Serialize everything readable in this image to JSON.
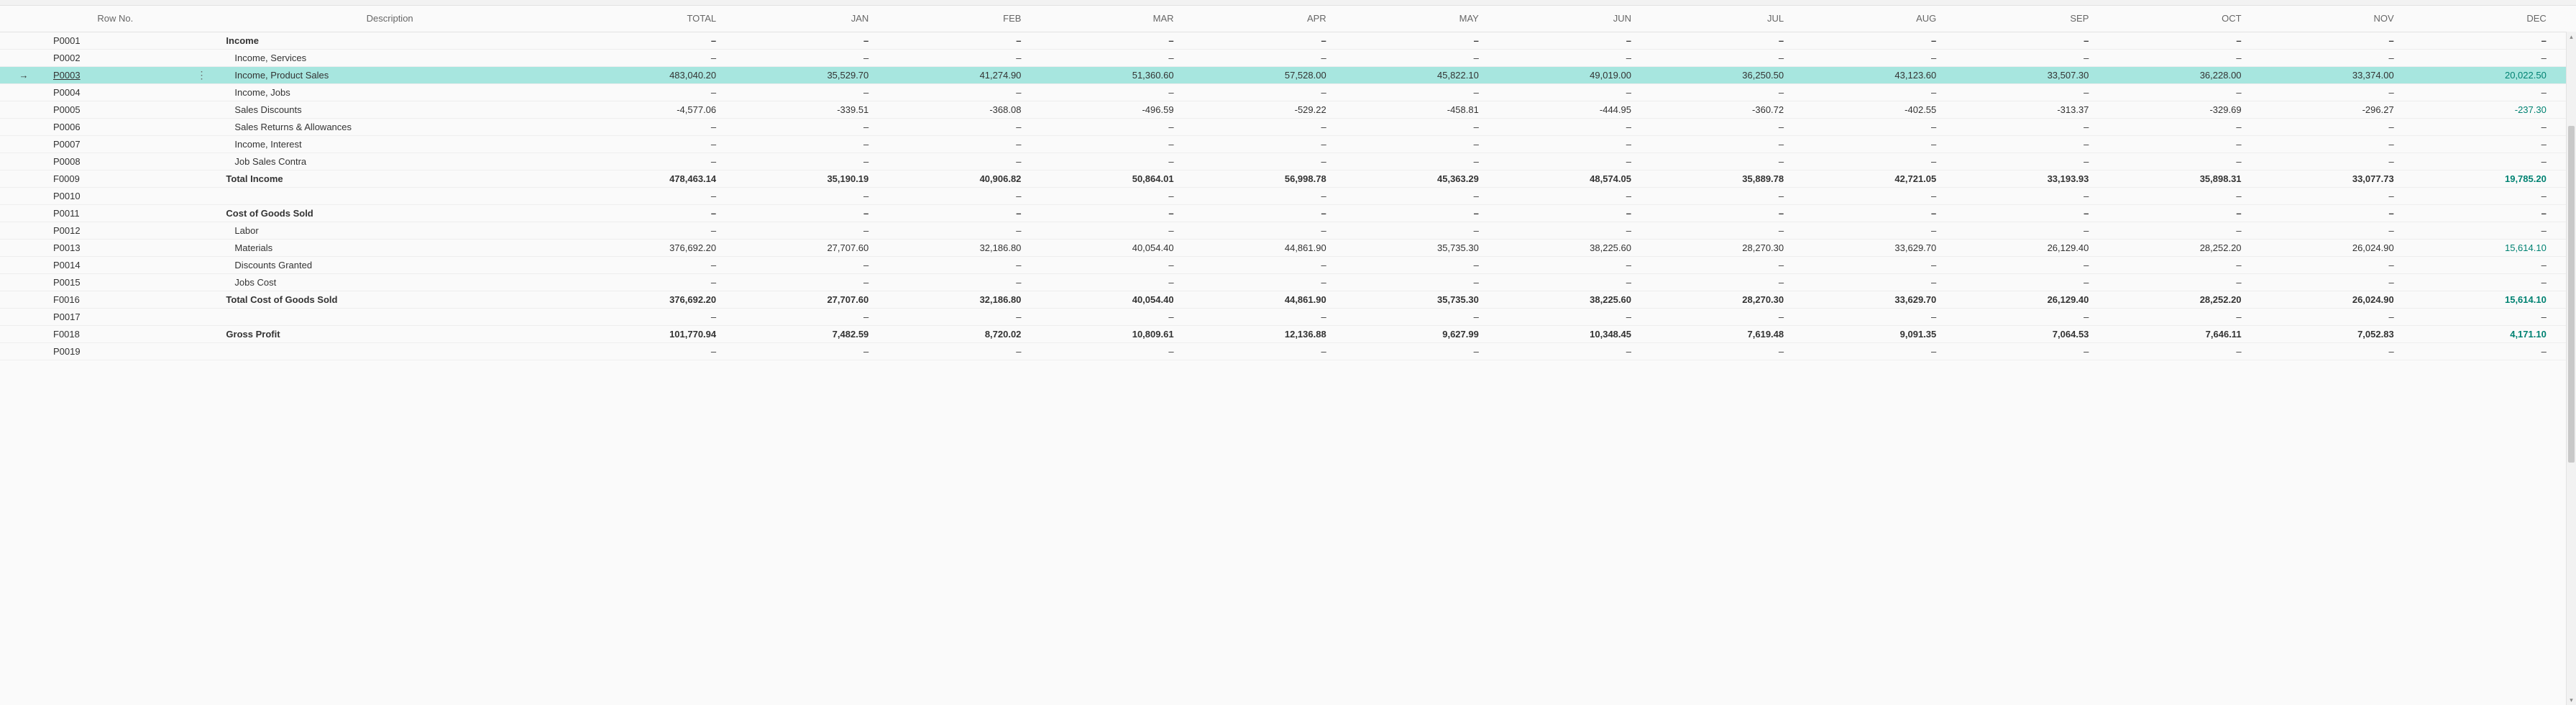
{
  "columns": {
    "rowno": "Row No.",
    "description": "Description",
    "total": "TOTAL",
    "months": [
      "JAN",
      "FEB",
      "MAR",
      "APR",
      "MAY",
      "JUN",
      "JUL",
      "AUG",
      "SEP",
      "OCT",
      "NOV",
      "DEC"
    ]
  },
  "dash": "–",
  "selected_row_id": "P0003",
  "rows": [
    {
      "id": "P0001",
      "desc": "Income",
      "bold": true,
      "sub": false,
      "values": {
        "total": null,
        "months": [
          null,
          null,
          null,
          null,
          null,
          null,
          null,
          null,
          null,
          null,
          null,
          null
        ]
      }
    },
    {
      "id": "P0002",
      "desc": "Income, Services",
      "bold": false,
      "sub": true,
      "values": {
        "total": null,
        "months": [
          null,
          null,
          null,
          null,
          null,
          null,
          null,
          null,
          null,
          null,
          null,
          null
        ]
      }
    },
    {
      "id": "P0003",
      "desc": "Income, Product Sales",
      "bold": false,
      "sub": true,
      "values": {
        "total": "483,040.20",
        "months": [
          "35,529.70",
          "41,274.90",
          "51,360.60",
          "57,528.00",
          "45,822.10",
          "49,019.00",
          "36,250.50",
          "43,123.60",
          "33,507.30",
          "36,228.00",
          "33,374.00",
          "20,022.50"
        ]
      }
    },
    {
      "id": "P0004",
      "desc": "Income, Jobs",
      "bold": false,
      "sub": true,
      "values": {
        "total": null,
        "months": [
          null,
          null,
          null,
          null,
          null,
          null,
          null,
          null,
          null,
          null,
          null,
          null
        ]
      }
    },
    {
      "id": "P0005",
      "desc": "Sales Discounts",
      "bold": false,
      "sub": true,
      "values": {
        "total": "-4,577.06",
        "months": [
          "-339.51",
          "-368.08",
          "-496.59",
          "-529.22",
          "-458.81",
          "-444.95",
          "-360.72",
          "-402.55",
          "-313.37",
          "-329.69",
          "-296.27",
          "-237.30"
        ]
      }
    },
    {
      "id": "P0006",
      "desc": "Sales Returns & Allowances",
      "bold": false,
      "sub": true,
      "values": {
        "total": null,
        "months": [
          null,
          null,
          null,
          null,
          null,
          null,
          null,
          null,
          null,
          null,
          null,
          null
        ]
      }
    },
    {
      "id": "P0007",
      "desc": "Income, Interest",
      "bold": false,
      "sub": true,
      "values": {
        "total": null,
        "months": [
          null,
          null,
          null,
          null,
          null,
          null,
          null,
          null,
          null,
          null,
          null,
          null
        ]
      }
    },
    {
      "id": "P0008",
      "desc": "Job Sales Contra",
      "bold": false,
      "sub": true,
      "values": {
        "total": null,
        "months": [
          null,
          null,
          null,
          null,
          null,
          null,
          null,
          null,
          null,
          null,
          null,
          null
        ]
      }
    },
    {
      "id": "F0009",
      "desc": "Total Income",
      "bold": true,
      "sub": false,
      "values": {
        "total": "478,463.14",
        "months": [
          "35,190.19",
          "40,906.82",
          "50,864.01",
          "56,998.78",
          "45,363.29",
          "48,574.05",
          "35,889.78",
          "42,721.05",
          "33,193.93",
          "35,898.31",
          "33,077.73",
          "19,785.20"
        ]
      }
    },
    {
      "id": "P0010",
      "desc": "",
      "bold": false,
      "sub": false,
      "values": {
        "total": null,
        "months": [
          null,
          null,
          null,
          null,
          null,
          null,
          null,
          null,
          null,
          null,
          null,
          null
        ]
      }
    },
    {
      "id": "P0011",
      "desc": "Cost of Goods Sold",
      "bold": true,
      "sub": false,
      "values": {
        "total": null,
        "months": [
          null,
          null,
          null,
          null,
          null,
          null,
          null,
          null,
          null,
          null,
          null,
          null
        ]
      }
    },
    {
      "id": "P0012",
      "desc": "Labor",
      "bold": false,
      "sub": true,
      "values": {
        "total": null,
        "months": [
          null,
          null,
          null,
          null,
          null,
          null,
          null,
          null,
          null,
          null,
          null,
          null
        ]
      }
    },
    {
      "id": "P0013",
      "desc": "Materials",
      "bold": false,
      "sub": true,
      "values": {
        "total": "376,692.20",
        "months": [
          "27,707.60",
          "32,186.80",
          "40,054.40",
          "44,861.90",
          "35,735.30",
          "38,225.60",
          "28,270.30",
          "33,629.70",
          "26,129.40",
          "28,252.20",
          "26,024.90",
          "15,614.10"
        ]
      }
    },
    {
      "id": "P0014",
      "desc": "Discounts Granted",
      "bold": false,
      "sub": true,
      "values": {
        "total": null,
        "months": [
          null,
          null,
          null,
          null,
          null,
          null,
          null,
          null,
          null,
          null,
          null,
          null
        ]
      }
    },
    {
      "id": "P0015",
      "desc": "Jobs Cost",
      "bold": false,
      "sub": true,
      "values": {
        "total": null,
        "months": [
          null,
          null,
          null,
          null,
          null,
          null,
          null,
          null,
          null,
          null,
          null,
          null
        ]
      }
    },
    {
      "id": "F0016",
      "desc": "Total Cost of Goods Sold",
      "bold": true,
      "sub": false,
      "values": {
        "total": "376,692.20",
        "months": [
          "27,707.60",
          "32,186.80",
          "40,054.40",
          "44,861.90",
          "35,735.30",
          "38,225.60",
          "28,270.30",
          "33,629.70",
          "26,129.40",
          "28,252.20",
          "26,024.90",
          "15,614.10"
        ]
      }
    },
    {
      "id": "P0017",
      "desc": "",
      "bold": false,
      "sub": false,
      "values": {
        "total": null,
        "months": [
          null,
          null,
          null,
          null,
          null,
          null,
          null,
          null,
          null,
          null,
          null,
          null
        ]
      }
    },
    {
      "id": "F0018",
      "desc": "Gross Profit",
      "bold": true,
      "sub": false,
      "values": {
        "total": "101,770.94",
        "months": [
          "7,482.59",
          "8,720.02",
          "10,809.61",
          "12,136.88",
          "9,627.99",
          "10,348.45",
          "7,619.48",
          "9,091.35",
          "7,064.53",
          "7,646.11",
          "7,052.83",
          "4,171.10"
        ]
      }
    },
    {
      "id": "P0019",
      "desc": "",
      "bold": false,
      "sub": false,
      "values": {
        "total": null,
        "months": [
          null,
          null,
          null,
          null,
          null,
          null,
          null,
          null,
          null,
          null,
          null,
          null
        ]
      }
    }
  ],
  "scrollbar": {
    "thumb_top_pct": 14,
    "thumb_height_pct": 50
  },
  "colors": {
    "selected_bg": "#a7e6df",
    "dec_text": "#008272",
    "header_text": "#666666",
    "border": "#e3e3e3",
    "background": "#fafafa"
  }
}
